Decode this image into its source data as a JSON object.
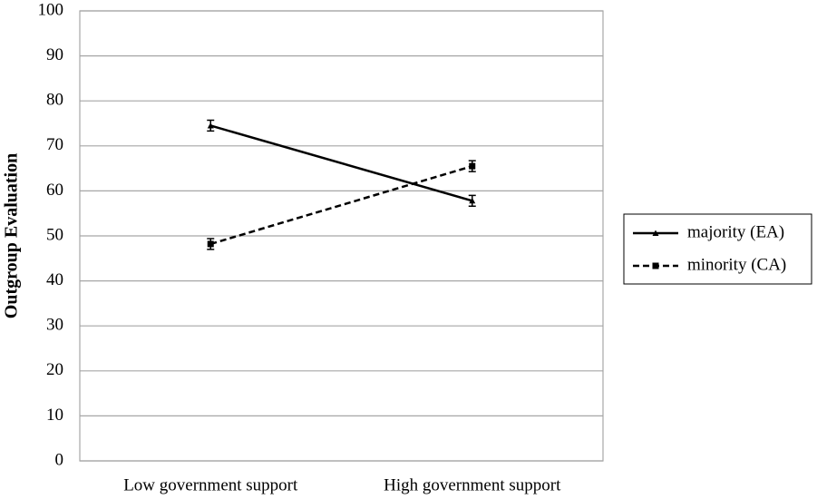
{
  "chart_data": {
    "type": "line",
    "y_label": "Outgroup Evaluation",
    "categories": [
      "Low government support",
      "High government support"
    ],
    "series": [
      {
        "name": "majority (EA)",
        "color": "#000000",
        "dash": false,
        "marker": "triangle",
        "values": [
          74.5,
          57.8
        ],
        "errors": [
          1.2,
          1.2
        ]
      },
      {
        "name": "minority (CA)",
        "color": "#000000",
        "dash": true,
        "marker": "square",
        "values": [
          48.2,
          65.5
        ],
        "errors": [
          1.2,
          1.2
        ]
      }
    ],
    "ylim": [
      0,
      100
    ],
    "yticks": [
      0,
      10,
      20,
      30,
      40,
      50,
      60,
      70,
      80,
      90,
      100
    ],
    "grid": true,
    "legend": "right"
  }
}
